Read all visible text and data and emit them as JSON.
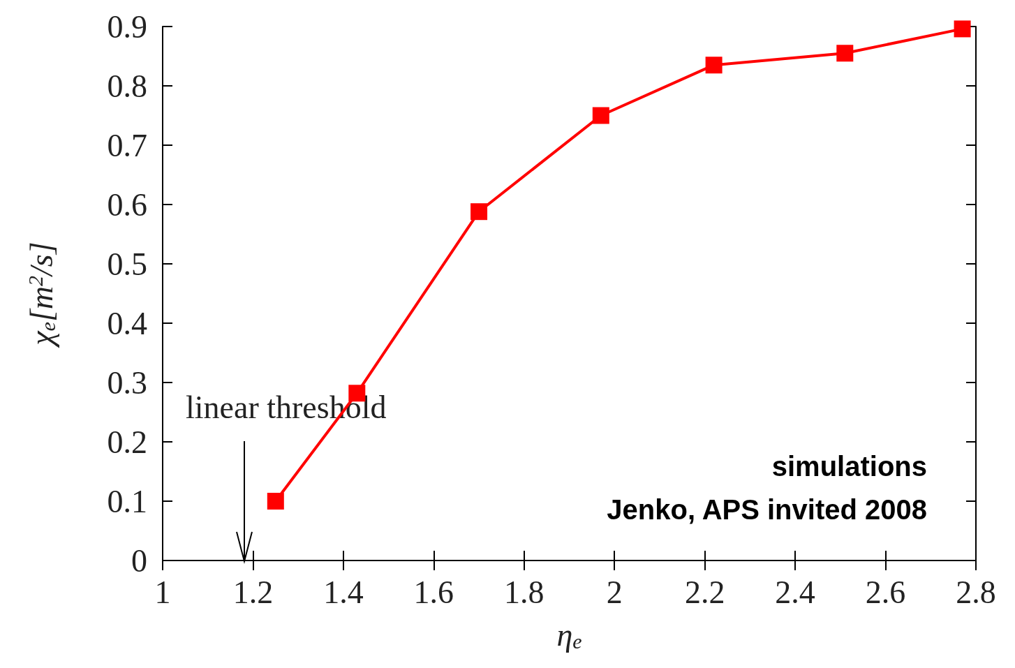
{
  "chart_data": {
    "type": "line",
    "xlabel": "η$_{e}$",
    "ylabel": "χ$_{e}$[m$^{2}$/s]",
    "x": [
      1.25,
      1.43,
      1.7,
      1.97,
      2.22,
      2.51,
      2.77
    ],
    "series": [
      {
        "color": "#ff0000",
        "values": [
          0.1,
          0.282,
          0.588,
          0.75,
          0.835,
          0.855,
          0.896
        ]
      }
    ],
    "xlim": [
      1,
      2.8
    ],
    "xticks": [
      1,
      1.2,
      1.4,
      1.6,
      1.8,
      2,
      2.2,
      2.4,
      2.6,
      2.8
    ],
    "ylim": [
      0,
      0.9
    ],
    "yticks": [
      0,
      0.1,
      0.2,
      0.3,
      0.4,
      0.5,
      0.6,
      0.7,
      0.8,
      0.9
    ],
    "grid": false,
    "marker": "square",
    "line_style": "solid",
    "annotations": [
      "linear threshold",
      "simulations",
      "Jenko, APS invited 2008"
    ]
  }
}
